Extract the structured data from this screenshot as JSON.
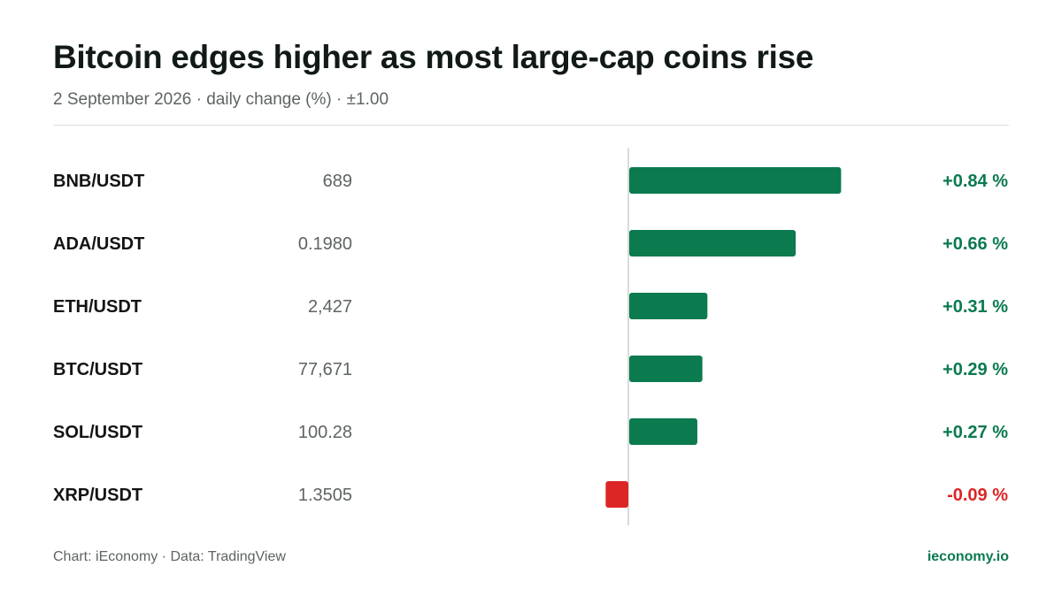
{
  "header": {
    "title": "Bitcoin edges higher as most large-cap coins rise",
    "subtitle": "2 September 2026 · daily change (%) · ±1.00"
  },
  "chart_data": {
    "type": "bar",
    "orientation": "horizontal",
    "title": "Bitcoin edges higher as most large-cap coins rise",
    "subtitle": "2 September 2026 · daily change (%) · ±1.00",
    "xlim": [
      -1.0,
      1.0
    ],
    "categories": [
      "BNB/USDT",
      "ADA/USDT",
      "ETH/USDT",
      "BTC/USDT",
      "SOL/USDT",
      "XRP/USDT"
    ],
    "prices": [
      "689",
      "0.1980",
      "2,427",
      "77,671",
      "100.28",
      "1.3505"
    ],
    "values": [
      0.84,
      0.66,
      0.31,
      0.29,
      0.27,
      -0.09
    ],
    "value_labels": [
      "+0.84 %",
      "+0.66 %",
      "+0.31 %",
      "+0.29 %",
      "+0.27 %",
      "-0.09 %"
    ],
    "colors": {
      "positive": "#0b7a4f",
      "negative": "#dc2626",
      "zero_line": "#d9dcda"
    },
    "grid": false,
    "legend": "none"
  },
  "footer": {
    "source": "Chart: iEconomy · Data: TradingView",
    "brand": "ieconomy.io"
  }
}
